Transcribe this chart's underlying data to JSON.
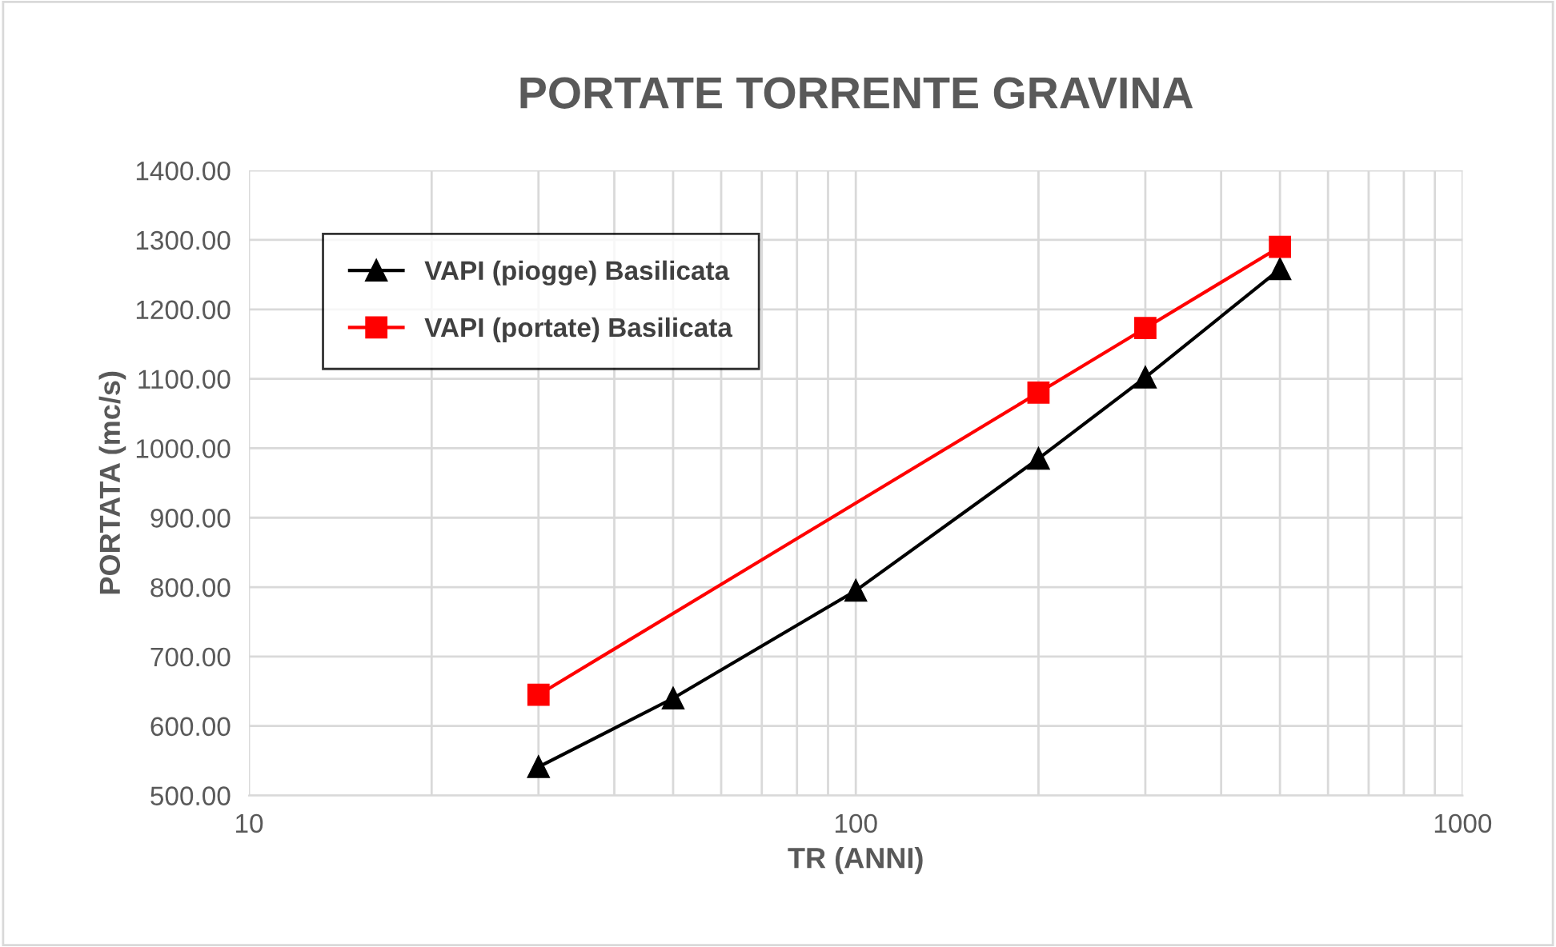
{
  "chart_data": {
    "type": "line",
    "title": "PORTATE TORRENTE GRAVINA",
    "xlabel": "TR (ANNI)",
    "ylabel": "PORTATA (mc/s)",
    "log": "x",
    "grid": true,
    "legend": "top left",
    "line_style": "solid",
    "xlim": [
      10,
      1000
    ],
    "xticks": [
      10,
      100,
      1000
    ],
    "ylim": [
      500,
      1400
    ],
    "yticks": [
      {
        "value": 500,
        "label": "500.00"
      },
      {
        "value": 600,
        "label": "600.00"
      },
      {
        "value": 700,
        "label": "700.00"
      },
      {
        "value": 800,
        "label": "800.00"
      },
      {
        "value": 900,
        "label": "900.00"
      },
      {
        "value": 1000,
        "label": "1000.00"
      },
      {
        "value": 1100,
        "label": "1100.00"
      },
      {
        "value": 1200,
        "label": "1200.00"
      },
      {
        "value": 1300,
        "label": "1300.00"
      },
      {
        "value": 1400,
        "label": "1400.00"
      }
    ],
    "series": [
      {
        "name": "VAPI (piogge) Basilicata",
        "color": "#000000",
        "marker": "triangle",
        "x": [
          30,
          50,
          100,
          200,
          300,
          500
        ],
        "values": [
          541,
          640,
          795,
          985,
          1102,
          1258
        ]
      },
      {
        "name": "VAPI (portate) Basilicata",
        "color": "#ff0000",
        "marker": "square",
        "x": [
          30,
          200,
          300,
          500
        ],
        "values": [
          645,
          1080,
          1173,
          1290
        ]
      }
    ]
  }
}
